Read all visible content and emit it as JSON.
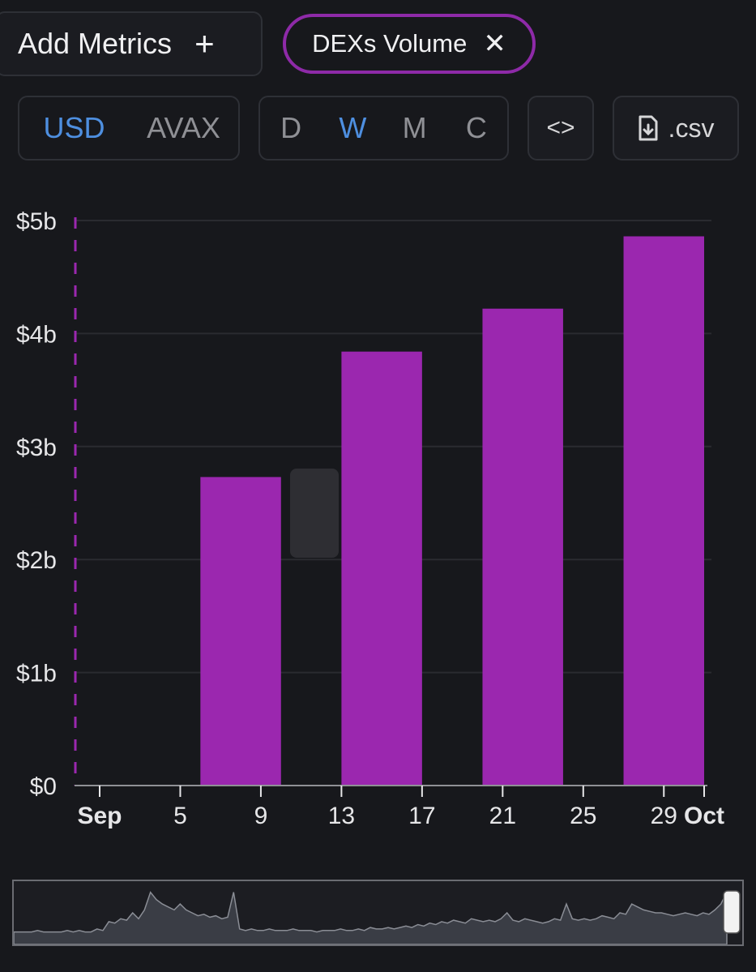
{
  "toolbar": {
    "add_metrics_label": "Add Metrics",
    "add_metrics_icon": "plus-icon",
    "metric_chip_label": "DEXs Volume",
    "metric_chip_close_icon": "close-icon",
    "metric_chip_color": "#8e2aa8",
    "currency_options": [
      "USD",
      "AVAX"
    ],
    "currency_selected": "USD",
    "interval_options": [
      "D",
      "W",
      "M",
      "C"
    ],
    "interval_selected": "W",
    "embed_icon": "code-icon",
    "csv_label": ".csv",
    "csv_icon": "file-download-icon",
    "accent_color": "#4e8fe0"
  },
  "chart_data": {
    "type": "bar",
    "title": "DEXs Volume",
    "series": [
      {
        "name": "DEXs Volume",
        "color": "#9b27af",
        "points": [
          {
            "x_start": 6,
            "x_end": 10,
            "value": 2.73
          },
          {
            "x_start": 13,
            "x_end": 17,
            "value": 3.84
          },
          {
            "x_start": 20,
            "x_end": 24,
            "value": 4.22
          },
          {
            "x_start": 27,
            "x_end": 31,
            "value": 4.86
          }
        ]
      }
    ],
    "x_domain": [
      1,
      31
    ],
    "ylim": [
      0,
      5
    ],
    "y_ticks": [
      {
        "value": 0,
        "label": "$0"
      },
      {
        "value": 1,
        "label": "$1b"
      },
      {
        "value": 2,
        "label": "$2b"
      },
      {
        "value": 3,
        "label": "$3b"
      },
      {
        "value": 4,
        "label": "$4b"
      },
      {
        "value": 5,
        "label": "$5b"
      }
    ],
    "x_ticks": [
      {
        "value": 1,
        "label": "Sep",
        "bold": true
      },
      {
        "value": 5,
        "label": "5"
      },
      {
        "value": 9,
        "label": "9"
      },
      {
        "value": 13,
        "label": "13"
      },
      {
        "value": 17,
        "label": "17"
      },
      {
        "value": 21,
        "label": "21"
      },
      {
        "value": 25,
        "label": "25"
      },
      {
        "value": 29,
        "label": "29"
      },
      {
        "value": 31,
        "label": "Oct",
        "bold": true
      }
    ],
    "grid": true,
    "cursor_line": true
  },
  "brush": {
    "overview": [
      3,
      3,
      3,
      3,
      4,
      3,
      3,
      3,
      3,
      4,
      3,
      4,
      3,
      3,
      5,
      4,
      10,
      9,
      12,
      11,
      16,
      12,
      18,
      30,
      25,
      22,
      20,
      18,
      22,
      18,
      16,
      14,
      15,
      13,
      14,
      12,
      13,
      30,
      5,
      4,
      5,
      4,
      4,
      5,
      4,
      4,
      4,
      5,
      4,
      4,
      4,
      3,
      4,
      4,
      4,
      5,
      4,
      4,
      5,
      4,
      6,
      5,
      5,
      6,
      5,
      6,
      7,
      6,
      8,
      7,
      9,
      8,
      10,
      9,
      11,
      10,
      9,
      12,
      11,
      10,
      11,
      10,
      12,
      16,
      11,
      10,
      12,
      11,
      10,
      9,
      10,
      12,
      11,
      22,
      12,
      11,
      12,
      11,
      12,
      14,
      13,
      12,
      16,
      15,
      22,
      20,
      18,
      17,
      16,
      16,
      15,
      14,
      15,
      16,
      15,
      14,
      16,
      15,
      18,
      22,
      30
    ]
  }
}
